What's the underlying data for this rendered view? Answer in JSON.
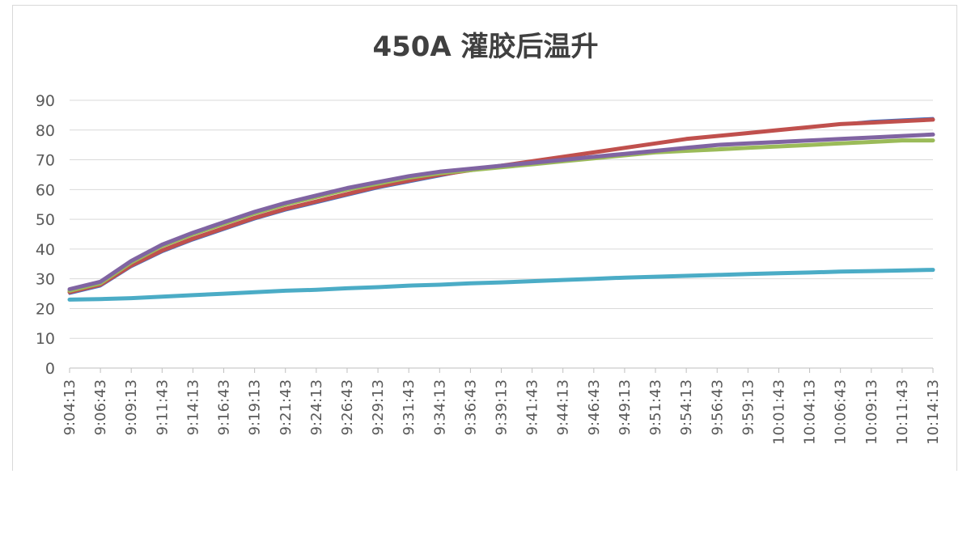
{
  "chart_data": {
    "type": "line",
    "title": "450A 灌胶后温升",
    "xlabel": "",
    "ylabel": "",
    "ylim": [
      0,
      90
    ],
    "yticks": [
      "0",
      "10",
      "20",
      "30",
      "40",
      "50",
      "60",
      "70",
      "80",
      "90"
    ],
    "x": [
      "9:04:13",
      "9:06:43",
      "9:09:13",
      "9:11:43",
      "9:14:13",
      "9:16:43",
      "9:19:13",
      "9:21:43",
      "9:24:13",
      "9:26:43",
      "9:29:13",
      "9:31:43",
      "9:34:13",
      "9:36:43",
      "9:39:13",
      "9:41:43",
      "9:44:13",
      "9:46:43",
      "9:49:13",
      "9:51:43",
      "9:54:13",
      "9:56:43",
      "9:59:13",
      "10:01:43",
      "10:04:13",
      "10:06:43",
      "10:09:13",
      "10:11:43",
      "10:14:13"
    ],
    "grid": true,
    "legend": "none",
    "series": [
      {
        "color": "#4472c4",
        "values": [
          25,
          27.5,
          34,
          39,
          43,
          46.5,
          50,
          53,
          55.5,
          58,
          60.5,
          62.5,
          64.5,
          66.5,
          68,
          69.5,
          71,
          72.5,
          74,
          75.5,
          77,
          78,
          79,
          80,
          81,
          82,
          83,
          83.5,
          84
        ]
      },
      {
        "color": "#c0504d",
        "values": [
          25.5,
          28,
          34.5,
          39.5,
          43.5,
          47,
          50.5,
          53.5,
          56,
          58.5,
          61,
          63,
          65,
          66.5,
          68,
          69.5,
          71,
          72.5,
          74,
          75.5,
          77,
          78,
          79,
          80,
          81,
          82,
          82.5,
          83,
          83.5
        ]
      },
      {
        "color": "#9bbb59",
        "values": [
          26,
          28.5,
          35.5,
          41,
          45,
          48.5,
          52,
          55,
          57.5,
          60,
          62,
          64,
          65.5,
          66.5,
          67.5,
          68.5,
          69.5,
          70.5,
          71.5,
          72.5,
          73,
          73.5,
          74,
          74.5,
          75,
          75.5,
          76,
          76.5,
          76.5
        ]
      },
      {
        "color": "#8064a2",
        "values": [
          26.5,
          29,
          36,
          41.5,
          45.5,
          49,
          52.5,
          55.5,
          58,
          60.5,
          62.5,
          64.5,
          66,
          67,
          68,
          69,
          70,
          71,
          72,
          73,
          74,
          75,
          75.5,
          76,
          76.5,
          77,
          77.5,
          78,
          78.5
        ]
      },
      {
        "color": "#4bacc6",
        "values": [
          23,
          23.2,
          23.5,
          24,
          24.5,
          25,
          25.5,
          26,
          26.3,
          26.8,
          27.2,
          27.7,
          28,
          28.5,
          28.8,
          29.2,
          29.6,
          30,
          30.4,
          30.7,
          31,
          31.3,
          31.6,
          31.9,
          32.1,
          32.4,
          32.6,
          32.8,
          33
        ]
      }
    ]
  }
}
